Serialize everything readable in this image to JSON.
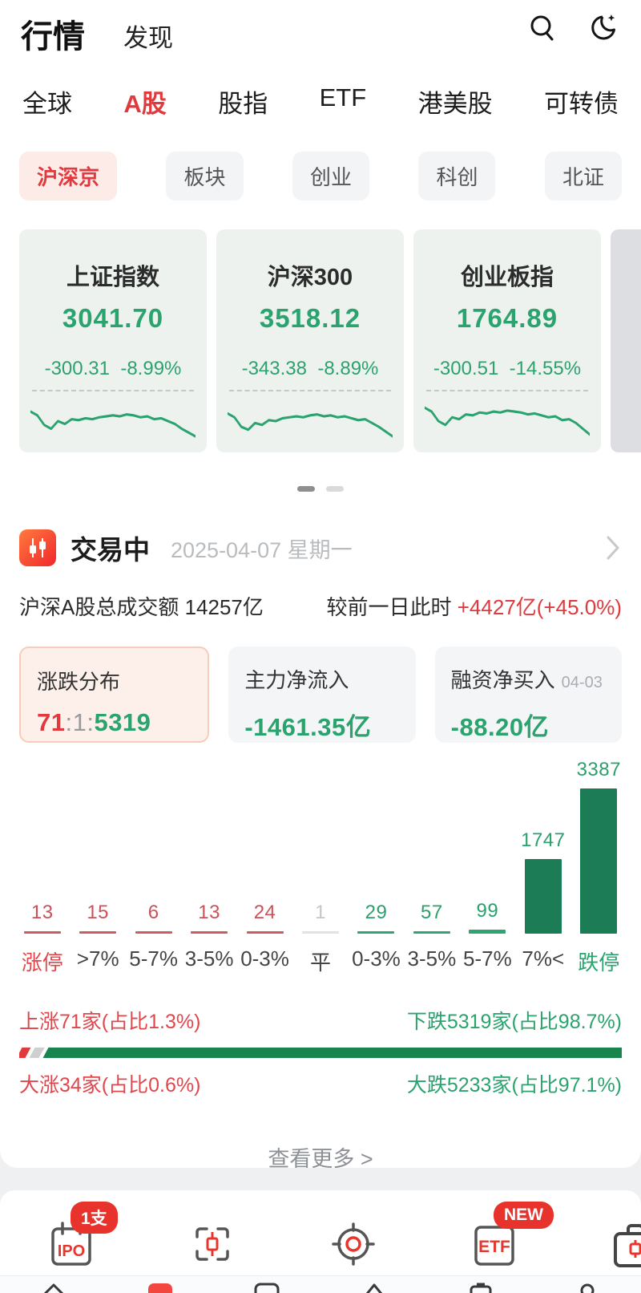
{
  "palette": {
    "accent_red": "#e0393e",
    "muted_red": "#cb5158",
    "green": "#2aa36e",
    "bar_green": "#2fa573",
    "bar_dark_green": "#1c7c55",
    "down_meter_green": "#17854d",
    "pill_red_bg": "#fdebe8",
    "card_bg": "#edf2ef",
    "stat_bg": "#f4f5f7",
    "selected_stat_bg": "#fdf0ea"
  },
  "header": {
    "app_title": "行情",
    "nav_discover": "发现"
  },
  "top_tabs": [
    "全球",
    "A股",
    "股指",
    "ETF",
    "港美股",
    "可转债"
  ],
  "active_tab": "A股",
  "filter_pills": [
    "沪深京",
    "板块",
    "创业",
    "科创",
    "北证"
  ],
  "active_pill": "沪深京",
  "index_cards": [
    {
      "name": "上证指数",
      "price": "3041.70",
      "change": "-300.31",
      "change_pct": "-8.99%",
      "spark": [
        12,
        16,
        26,
        30,
        22,
        25,
        20,
        21,
        19,
        20,
        18,
        17,
        16,
        17,
        15,
        16,
        18,
        17,
        20,
        19,
        22,
        25,
        30,
        34,
        38
      ]
    },
    {
      "name": "沪深300",
      "price": "3518.12",
      "change": "-343.38",
      "change_pct": "-8.89%",
      "spark": [
        14,
        18,
        28,
        31,
        24,
        26,
        21,
        22,
        19,
        18,
        17,
        18,
        16,
        15,
        17,
        16,
        18,
        17,
        19,
        21,
        20,
        24,
        28,
        33,
        38
      ]
    },
    {
      "name": "创业板指",
      "price": "1764.89",
      "change": "-300.51",
      "change_pct": "-14.55%",
      "spark": [
        8,
        12,
        22,
        26,
        18,
        20,
        15,
        16,
        13,
        14,
        12,
        13,
        11,
        12,
        13,
        15,
        14,
        16,
        18,
        17,
        21,
        20,
        24,
        30,
        36
      ]
    }
  ],
  "page_dots": {
    "count": 2,
    "active": 0
  },
  "session": {
    "status": "交易中",
    "date": "2025-04-07 星期一"
  },
  "turnover": {
    "label": "沪深A股总成交额",
    "value": "14257亿",
    "compare_label": "较前一日此时",
    "compare_value": "+4427亿(+45.0%)"
  },
  "stat_cards": [
    {
      "label": "涨跌分布",
      "value_up": "71",
      "value_sep": ":1:",
      "value_down": "5319"
    },
    {
      "label": "主力净流入",
      "value": "-1461.35亿"
    },
    {
      "label": "融资净买入",
      "date": "04-03",
      "value": "-88.20亿"
    }
  ],
  "chart_data": {
    "type": "bar",
    "title": "涨跌分布",
    "categories": [
      "涨停",
      ">7%",
      "5-7%",
      "3-5%",
      "0-3%",
      "平",
      "0-3%",
      "3-5%",
      "5-7%",
      "7%<",
      "跌停"
    ],
    "values": [
      13,
      15,
      6,
      13,
      24,
      1,
      29,
      57,
      99,
      1747,
      3387
    ],
    "colors": [
      "red",
      "red",
      "red",
      "red",
      "red",
      "flat",
      "green",
      "green",
      "green",
      "dark",
      "dark"
    ],
    "ylim": [
      0,
      3387
    ],
    "grid": false,
    "legend": "none"
  },
  "breadth": {
    "up_text": "上涨71家(占比1.3%)",
    "down_text": "下跌5319家(占比98.7%)",
    "surge_text": "大涨34家(占比0.6%)",
    "plunge_text": "大跌5233家(占比97.1%)",
    "bar": {
      "up_pct": 1.4,
      "flat_pct": 1.6,
      "down_pct": 97.0
    }
  },
  "more_link": "查看更多 >",
  "shortcuts": [
    {
      "name": "ipo-calendar",
      "text": "IPO",
      "badge": "1支"
    },
    {
      "name": "scan-kline",
      "text": "",
      "badge": ""
    },
    {
      "name": "target",
      "text": "",
      "badge": ""
    },
    {
      "name": "etf",
      "text": "ETF",
      "badge": "NEW"
    },
    {
      "name": "briefcase",
      "text": "",
      "badge": ""
    }
  ]
}
